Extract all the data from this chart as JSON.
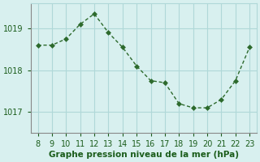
{
  "x": [
    8,
    9,
    10,
    11,
    12,
    13,
    14,
    15,
    16,
    17,
    18,
    19,
    20,
    21,
    22,
    23
  ],
  "y": [
    1018.6,
    1018.6,
    1018.75,
    1019.1,
    1019.35,
    1018.9,
    1018.55,
    1018.1,
    1017.75,
    1017.7,
    1017.2,
    1017.1,
    1017.1,
    1017.3,
    1017.75,
    1018.55
  ],
  "line_color": "#2d6a2d",
  "marker": "D",
  "marker_size": 3,
  "background_color": "#d8f0ef",
  "grid_color": "#b0d8d8",
  "xlabel": "Graphe pression niveau de la mer (hPa)",
  "xlabel_color": "#1a5c1a",
  "tick_color": "#1a5c1a",
  "yticks": [
    1017,
    1018,
    1019
  ],
  "xlim": [
    7.5,
    23.5
  ],
  "ylim": [
    1016.5,
    1019.6
  ],
  "xticks": [
    8,
    9,
    10,
    11,
    12,
    13,
    14,
    15,
    16,
    17,
    18,
    19,
    20,
    21,
    22,
    23
  ]
}
